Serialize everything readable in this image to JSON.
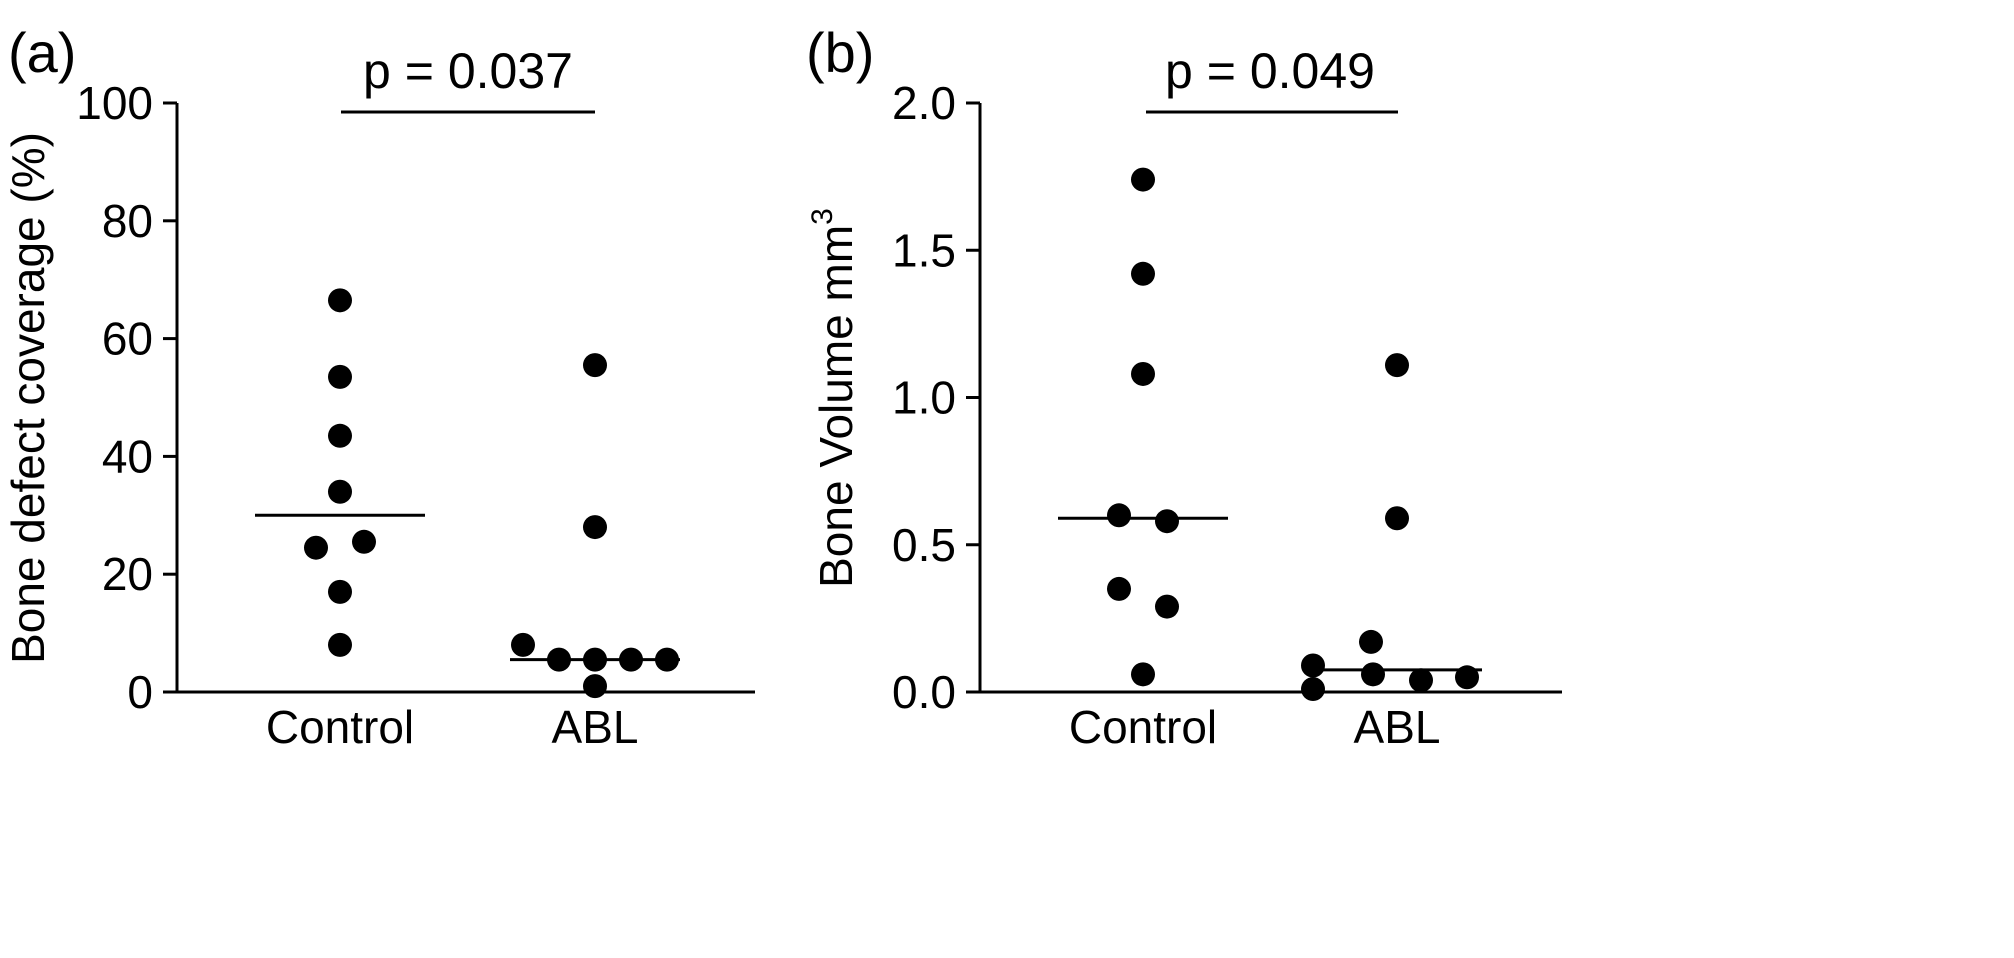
{
  "chart_data": [
    {
      "type": "scatter",
      "panel_label": "(a)",
      "ylabel": "Bone defect coverage  (%)",
      "ylim": [
        0,
        100
      ],
      "yticks": [
        "0",
        "20",
        "40",
        "60",
        "80",
        "100"
      ],
      "categories": [
        "Control",
        "ABL"
      ],
      "p_value": "p = 0.037",
      "series": [
        {
          "category": "Control",
          "values": [
            66.5,
            53.5,
            43.5,
            34.0,
            25.5,
            24.5,
            17.0,
            8.0
          ],
          "median": 30.0
        },
        {
          "category": "ABL",
          "values": [
            55.5,
            28.0,
            8.0,
            5.5,
            5.5,
            5.5,
            5.5,
            1.0
          ],
          "median": 5.5
        }
      ]
    },
    {
      "type": "scatter",
      "panel_label": "(b)",
      "ylabel": "Bone Volume mm",
      "ylabel_sup": "3",
      "ylim": [
        0,
        2.0
      ],
      "yticks": [
        "0.0",
        "0.5",
        "1.0",
        "1.5",
        "2.0"
      ],
      "categories": [
        "Control",
        "ABL"
      ],
      "p_value": "p = 0.049",
      "series": [
        {
          "category": "Control",
          "values": [
            1.74,
            1.42,
            1.08,
            0.6,
            0.58,
            0.35,
            0.29,
            0.06
          ],
          "median": 0.59
        },
        {
          "category": "ABL",
          "values": [
            1.11,
            0.59,
            0.17,
            0.09,
            0.06,
            0.05,
            0.04,
            0.01
          ],
          "median": 0.075
        }
      ]
    }
  ]
}
